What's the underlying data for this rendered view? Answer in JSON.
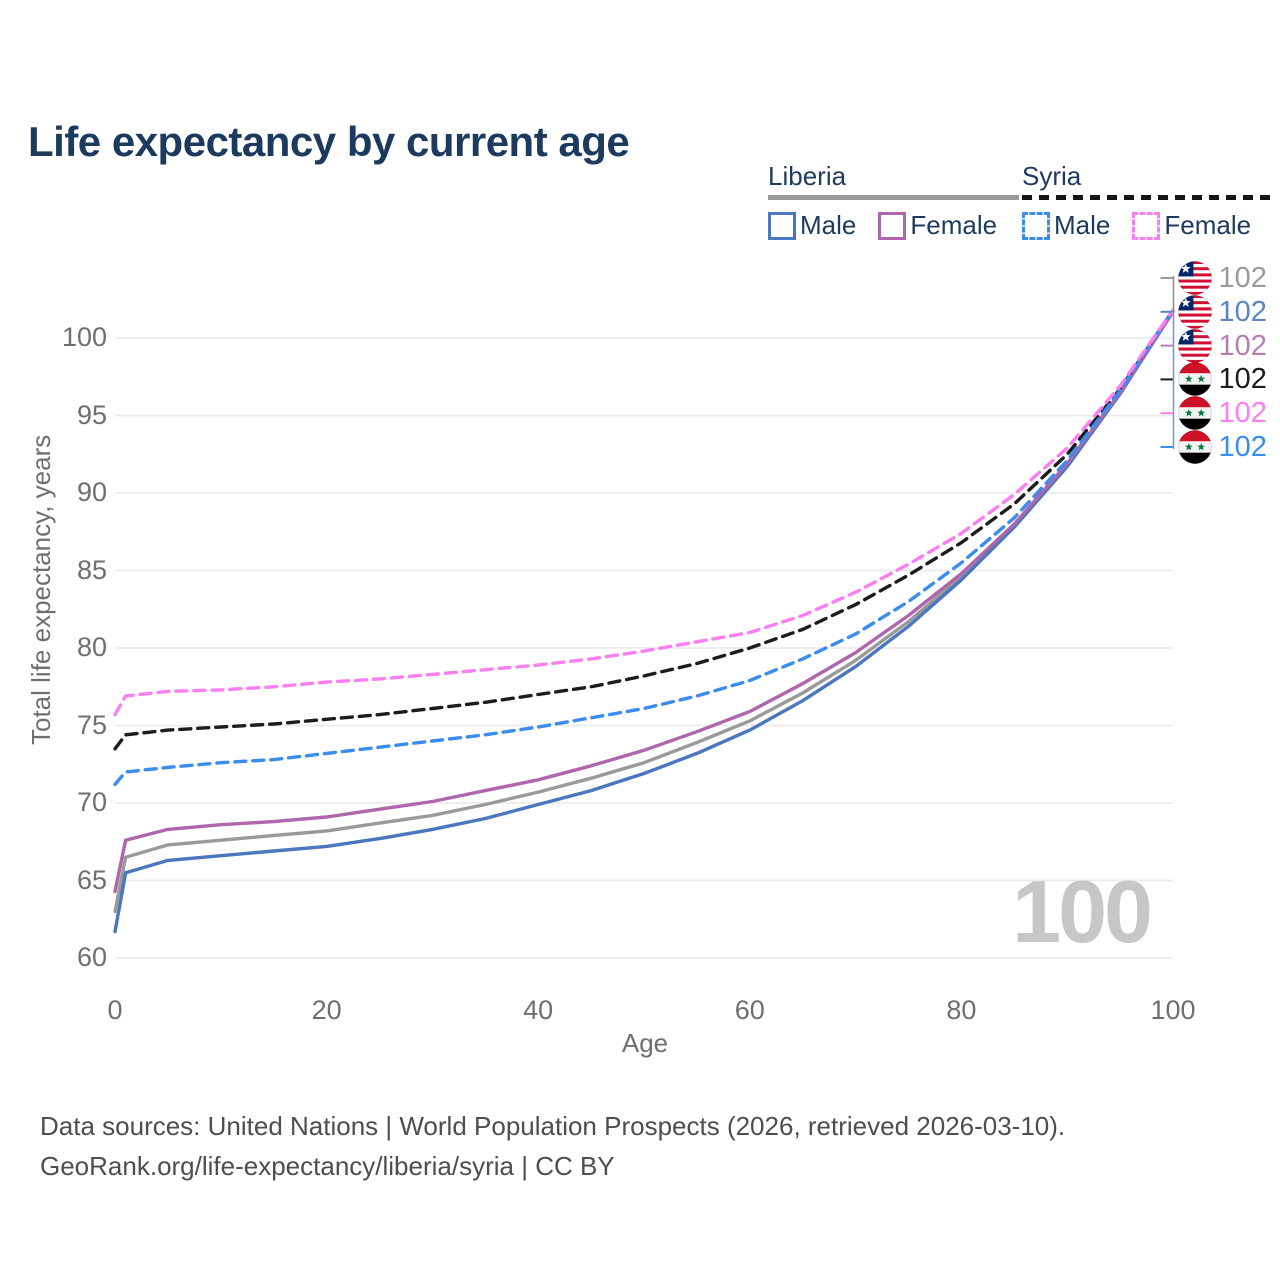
{
  "header": {
    "title": "Life expectancy by current age"
  },
  "legend": {
    "groups": [
      {
        "country": "Liberia",
        "line_style": "solid",
        "underline_color": "#9a9a9a",
        "items": [
          {
            "label": "Male",
            "color": "#4a77bd",
            "dash": false
          },
          {
            "label": "Female",
            "color": "#b066ad",
            "dash": false
          }
        ]
      },
      {
        "country": "Syria",
        "line_style": "dashed",
        "underline_color": "#161616",
        "items": [
          {
            "label": "Male",
            "color": "#3a8ced",
            "dash": true
          },
          {
            "label": "Female",
            "color": "#fb7ff0",
            "dash": true
          }
        ]
      }
    ]
  },
  "chart_data": {
    "type": "line",
    "title": "Life expectancy by current age",
    "xlabel": "Age",
    "ylabel": "Total life expectancy, years",
    "xlim": [
      0,
      100
    ],
    "ylim": [
      58,
      103
    ],
    "x_ticks": [
      0,
      20,
      40,
      60,
      80,
      100
    ],
    "y_ticks": [
      60,
      65,
      70,
      75,
      80,
      85,
      90,
      95,
      100
    ],
    "grid": "horizontal",
    "x": [
      0,
      1,
      5,
      10,
      15,
      20,
      25,
      30,
      35,
      40,
      45,
      50,
      55,
      60,
      65,
      70,
      75,
      80,
      85,
      90,
      95,
      100
    ],
    "series": [
      {
        "name": "Liberia Both sexes",
        "country": "Liberia",
        "color": "#9a9a9a",
        "dash": false,
        "end_label": "102",
        "values": [
          63.0,
          66.5,
          67.3,
          67.6,
          67.9,
          68.2,
          68.7,
          69.2,
          69.9,
          70.7,
          71.6,
          72.6,
          73.9,
          75.3,
          77.1,
          79.2,
          81.7,
          84.6,
          87.9,
          91.8,
          96.4,
          101.7
        ]
      },
      {
        "name": "Liberia Male",
        "country": "Liberia",
        "color": "#4a77bd",
        "dash": false,
        "end_label": "102",
        "values": [
          61.7,
          65.5,
          66.3,
          66.6,
          66.9,
          67.2,
          67.7,
          68.3,
          69.0,
          69.9,
          70.8,
          71.9,
          73.2,
          74.7,
          76.6,
          78.8,
          81.4,
          84.4,
          87.8,
          91.7,
          96.4,
          101.7
        ]
      },
      {
        "name": "Liberia Female",
        "country": "Liberia",
        "color": "#b066ad",
        "dash": false,
        "end_label": "102",
        "values": [
          64.3,
          67.6,
          68.3,
          68.6,
          68.8,
          69.1,
          69.6,
          70.1,
          70.8,
          71.5,
          72.4,
          73.4,
          74.6,
          75.9,
          77.7,
          79.7,
          82.1,
          84.8,
          88.0,
          91.9,
          96.5,
          101.7
        ]
      },
      {
        "name": "Syria Both sexes",
        "country": "Syria",
        "color": "#1c1c1c",
        "dash": true,
        "end_label": "102",
        "values": [
          73.5,
          74.4,
          74.7,
          74.9,
          75.1,
          75.4,
          75.7,
          76.1,
          76.5,
          77.0,
          77.5,
          78.2,
          79.0,
          80.0,
          81.2,
          82.8,
          84.7,
          86.8,
          89.3,
          92.5,
          96.7,
          101.8
        ]
      },
      {
        "name": "Syria Male",
        "country": "Syria",
        "color": "#3a8ced",
        "dash": true,
        "end_label": "102",
        "values": [
          71.2,
          72.0,
          72.3,
          72.6,
          72.8,
          73.2,
          73.6,
          74.0,
          74.4,
          74.9,
          75.5,
          76.1,
          76.9,
          77.9,
          79.3,
          80.9,
          83.0,
          85.5,
          88.4,
          92.1,
          96.6,
          101.8
        ]
      },
      {
        "name": "Syria Female",
        "country": "Syria",
        "color": "#fb7ff0",
        "dash": true,
        "end_label": "102",
        "values": [
          75.7,
          76.9,
          77.2,
          77.3,
          77.5,
          77.8,
          78.0,
          78.3,
          78.6,
          78.9,
          79.3,
          79.8,
          80.4,
          81.0,
          82.1,
          83.6,
          85.4,
          87.4,
          89.9,
          92.9,
          96.9,
          101.8
        ]
      }
    ],
    "legend_position": "top-right"
  },
  "end_labels": [
    {
      "flag": "liberia",
      "value": "102",
      "color": "#9a9a9a"
    },
    {
      "flag": "liberia",
      "value": "102",
      "color": "#5b84c4"
    },
    {
      "flag": "liberia",
      "value": "102",
      "color": "#b57fb5"
    },
    {
      "flag": "syria",
      "value": "102",
      "color": "#1c1c1c"
    },
    {
      "flag": "syria",
      "value": "102",
      "color": "#fb7ff0"
    },
    {
      "flag": "syria",
      "value": "102",
      "color": "#3a8ced"
    }
  ],
  "watermark": {
    "age_counter": "100"
  },
  "footer": {
    "line1": "Data sources: United Nations | World Population Prospects (2026, retrieved 2026-03-10).",
    "line2": "GeoRank.org/life-expectancy/liberia/syria | CC BY"
  },
  "colors": {
    "title_text": "#1b3a5e",
    "axis_text": "#6f6f6f",
    "gridline": "#ebebeb",
    "footer_text": "#4e4e4e",
    "watermark": "#c7c7c7"
  }
}
